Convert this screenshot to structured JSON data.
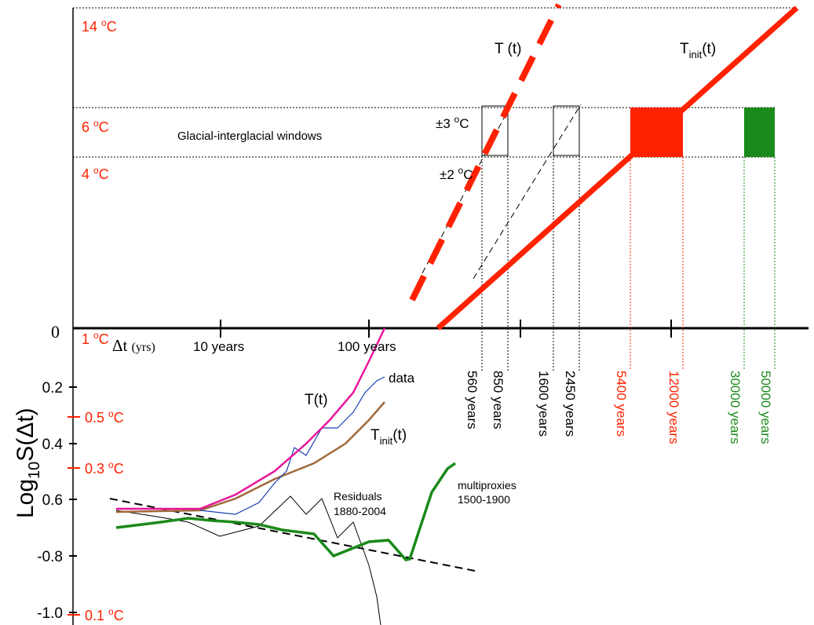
{
  "figure": {
    "upper_labels": [
      {
        "value": "14",
        "sup": "o",
        "unit": "C"
      },
      {
        "value": "6",
        "sup": "o",
        "unit": "C"
      },
      {
        "value": "4",
        "sup": "o",
        "unit": "C"
      },
      {
        "value": "1",
        "sup": "o",
        "unit": "C"
      }
    ],
    "window_label": "Glacial-interglacial windows",
    "pm3": {
      "value": "±3",
      "sup": "o",
      "unit": "C"
    },
    "pm2": {
      "value": "±2",
      "sup": "o",
      "unit": "C"
    },
    "upper_T": "T (t)",
    "upper_Tinit": {
      "base": "T",
      "sub": "init",
      "rest": "(t)"
    },
    "zero": "0",
    "dt_label": {
      "symbol": "Δt",
      "unit": "(yrs)"
    },
    "x_labels": [
      "10 years",
      "100 years"
    ],
    "window_years": [
      "560 years",
      "850 years",
      "1600 years",
      "2450 years",
      "5400 years",
      "12000 years",
      "30000 years",
      "50000 years"
    ],
    "lower_axis_title": {
      "base": "Log",
      "sub": "10",
      "rest": "S(Δt)"
    },
    "lower_ticks": [
      "0.2",
      "0.4",
      "0.6",
      "-0.8",
      "-1.0"
    ],
    "lower_temp_labels": [
      {
        "value": "0.5",
        "sup": "o",
        "unit": "C"
      },
      {
        "value": "0.3",
        "sup": "o",
        "unit": "C"
      },
      {
        "value": "0.1",
        "sup": "o",
        "unit": "C"
      }
    ],
    "lower_T": "T(t)",
    "lower_data": "data",
    "lower_Tinit": {
      "base": "T",
      "sub": "init",
      "rest": "(t)"
    },
    "residuals": [
      "Residuals",
      "1880-2004"
    ],
    "multiproxies": [
      "multiproxies",
      "1500-1900"
    ]
  }
}
